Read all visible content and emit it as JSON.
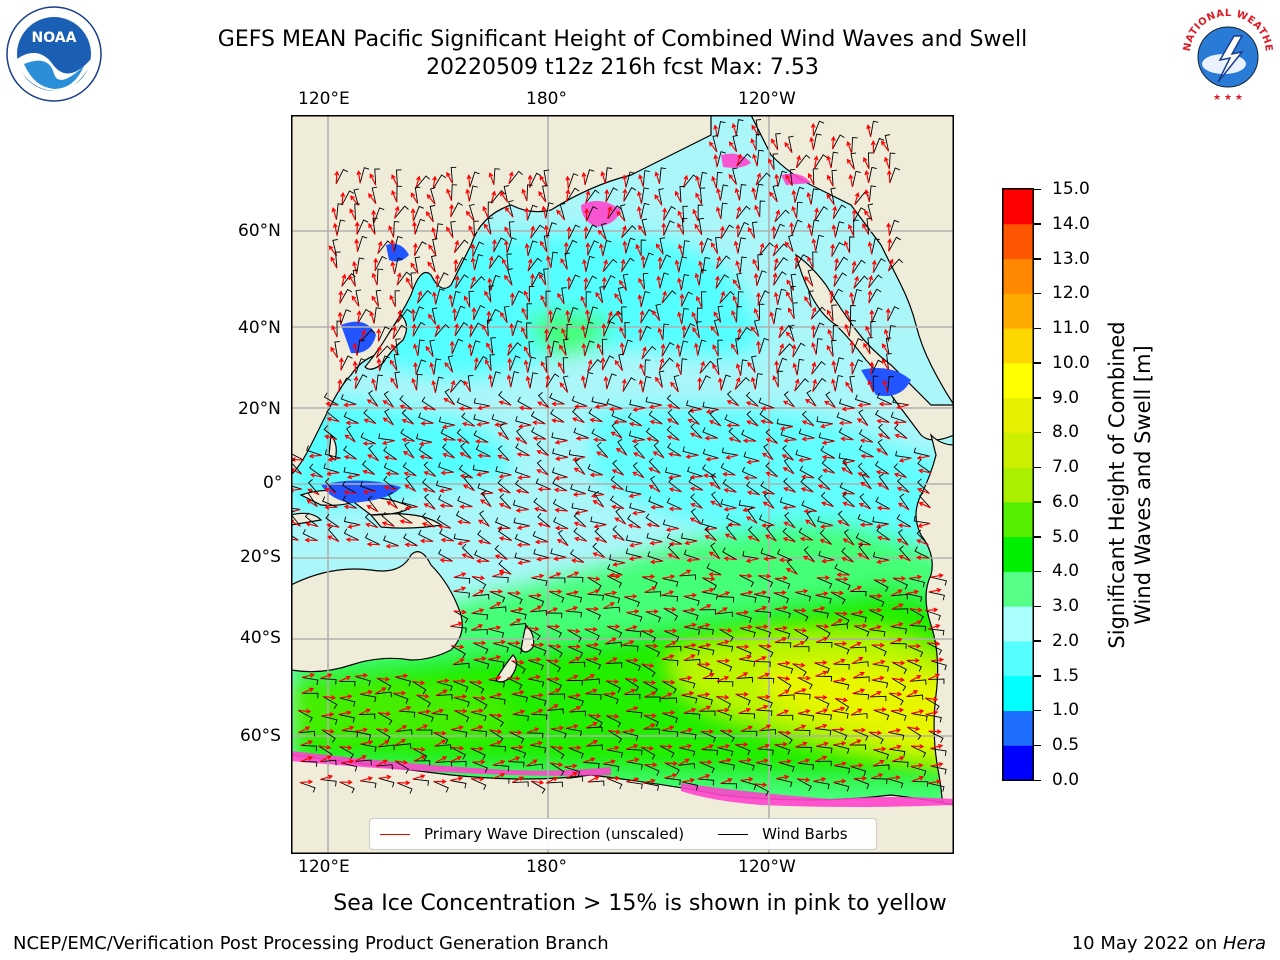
{
  "header": {
    "title_line1": "GEFS MEAN Pacific Significant Height of Combined Wind Waves and Swell",
    "title_line2": "20220509 t12z 216h fcst   Max: 7.53"
  },
  "logos": {
    "left": "NOAA",
    "right": "NATIONAL WEATHER SERVICE"
  },
  "map": {
    "lon_labels": [
      "120°E",
      "180°",
      "120°W"
    ],
    "lat_labels": [
      "60°N",
      "40°N",
      "20°N",
      "0°",
      "20°S",
      "40°S",
      "60°S"
    ],
    "colors": {
      "land": "#efecd9",
      "ocean_low": "#aaf6f9",
      "ocean_cyan": "#55ffff",
      "wave_mid": "#44ff77",
      "wave_green": "#22ee00",
      "wave_yellowgreen": "#bbf500",
      "wave_yellow": "#e8f700",
      "sea_ice": "#ff44cc",
      "blue_shallow": "#2255ff",
      "arrow_red": "#ff0000",
      "barb_black": "#000000",
      "grid": "#b0b0b0"
    }
  },
  "legend": {
    "primary_wave": "Primary Wave Direction (unscaled)",
    "wind_barbs": "Wind Barbs"
  },
  "colorbar": {
    "label_line1": "Significant Height of Combined",
    "label_line2": "Wind Waves and Swell [m]",
    "ticks": [
      "0.0",
      "0.5",
      "1.0",
      "1.5",
      "2.0",
      "3.0",
      "4.0",
      "5.0",
      "6.0",
      "7.0",
      "8.0",
      "9.0",
      "10.0",
      "11.0",
      "12.0",
      "13.0",
      "14.0",
      "15.0"
    ],
    "colors": [
      "#0000ff",
      "#1e6eff",
      "#00ffff",
      "#55ffff",
      "#aaffff",
      "#55ff88",
      "#00ee00",
      "#55ee00",
      "#aaee00",
      "#ccf000",
      "#e6f000",
      "#ffff00",
      "#ffd700",
      "#ffaa00",
      "#ff8800",
      "#ff5500",
      "#ff0000"
    ]
  },
  "caption": "Sea Ice Concentration > 15% is shown in pink to yellow",
  "footer": {
    "left": "NCEP/EMC/Verification Post Processing Product Generation Branch",
    "right_date": "10 May 2022 on ",
    "right_machine": "Hera"
  }
}
